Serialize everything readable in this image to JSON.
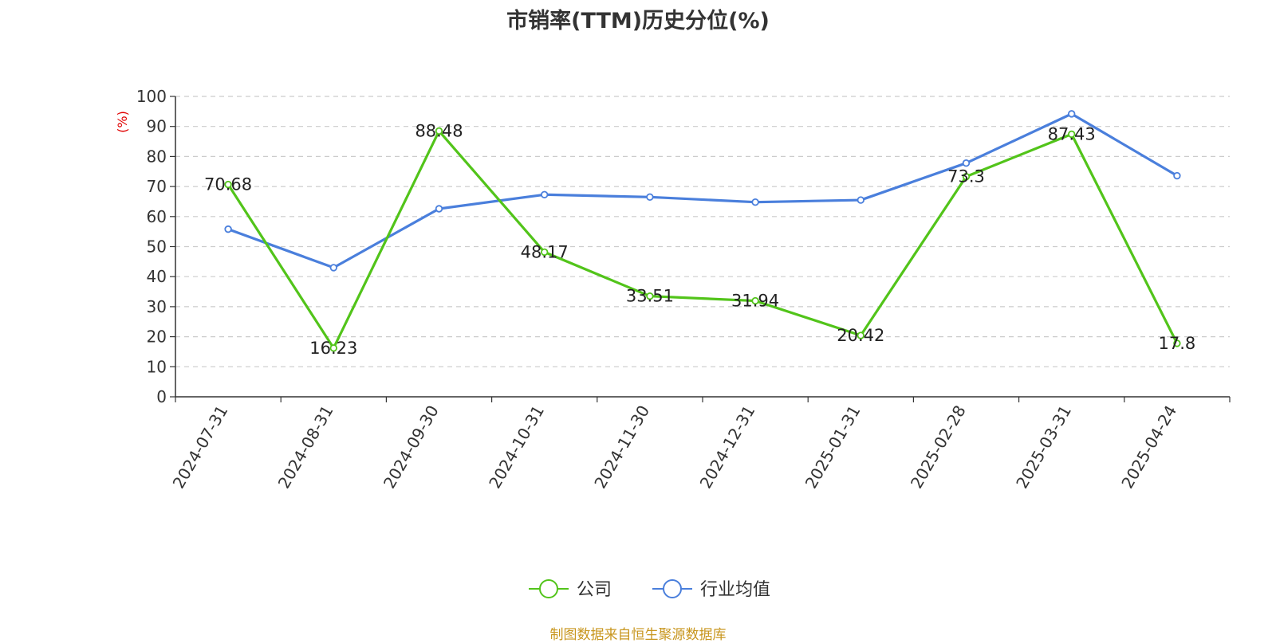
{
  "chart_data": {
    "type": "line",
    "title": "市销率(TTM)历史分位(%)",
    "ylabel": "(%)",
    "xlabel": "",
    "ylim": [
      0,
      100
    ],
    "yticks": [
      0,
      10,
      20,
      30,
      40,
      50,
      60,
      70,
      80,
      90,
      100
    ],
    "grid": true,
    "legend_position": "bottom",
    "categories": [
      "2024-07-31",
      "2024-08-31",
      "2024-09-30",
      "2024-10-31",
      "2024-11-30",
      "2024-12-31",
      "2025-01-31",
      "2025-02-28",
      "2025-03-31",
      "2025-04-24"
    ],
    "series": [
      {
        "name": "公司",
        "color": "#52c41a",
        "show_labels": true,
        "values": [
          70.68,
          16.23,
          88.48,
          48.17,
          33.51,
          31.94,
          20.42,
          73.3,
          87.43,
          17.8
        ]
      },
      {
        "name": "行业均值",
        "color": "#4a7fdc",
        "show_labels": false,
        "values": [
          55.8,
          43.0,
          62.6,
          67.3,
          66.5,
          64.8,
          65.5,
          77.8,
          94.2,
          73.6
        ]
      }
    ]
  },
  "footer": "制图数据来自恒生聚源数据库"
}
